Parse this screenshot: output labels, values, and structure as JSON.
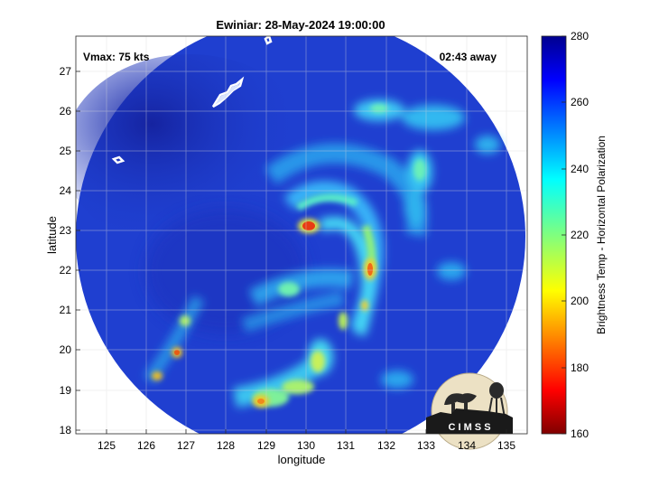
{
  "title": "Ewiniar: 28-May-2024 19:00:00",
  "vmax_label": "Vmax: 75 kts",
  "time_away_label": "02:43 away",
  "xlabel": "longitude",
  "ylabel": "latitude",
  "x_ticks": [
    "125",
    "126",
    "127",
    "128",
    "129",
    "130",
    "131",
    "132",
    "133",
    "134",
    "135"
  ],
  "y_ticks": [
    "18",
    "19",
    "20",
    "21",
    "22",
    "23",
    "24",
    "25",
    "26",
    "27"
  ],
  "colorbar": {
    "label": "Brightness Temp - Horizontal Polarization",
    "ticks": [
      "160",
      "180",
      "200",
      "220",
      "240",
      "260",
      "280"
    ]
  },
  "logo_text": "C I M S S",
  "map_data": {
    "xlim": [
      124.3,
      135.3
    ],
    "ylim": [
      17.85,
      27.85
    ],
    "colorbar_range": [
      160,
      280
    ],
    "storm_center": [
      130.0,
      23.1
    ],
    "colors": {
      "background_cold": "#1f3fd0",
      "deep": "#1727a8",
      "bands": "#2ab0ee",
      "yellow": "#e8e83a",
      "orange": "#f08a1c",
      "red": "#d32a10",
      "land_outline": "#ffffff"
    }
  }
}
